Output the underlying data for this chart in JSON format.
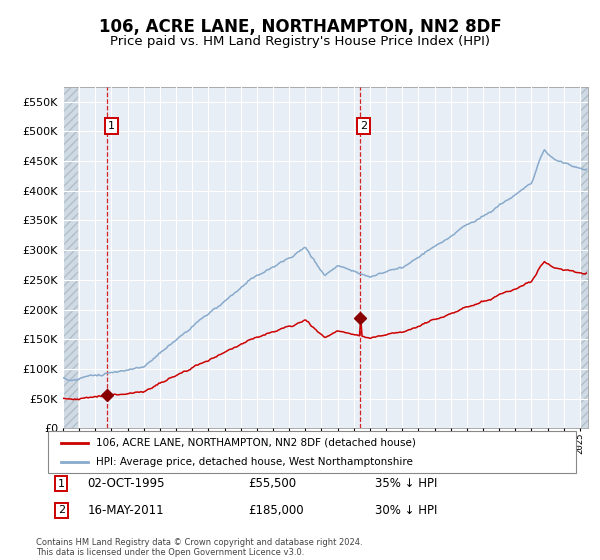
{
  "title": "106, ACRE LANE, NORTHAMPTON, NN2 8DF",
  "subtitle": "Price paid vs. HM Land Registry's House Price Index (HPI)",
  "title_fontsize": 12,
  "subtitle_fontsize": 9.5,
  "bg_color": "#e8eef5",
  "grid_color": "#ffffff",
  "red_line_color": "#cc0000",
  "blue_line_color": "#88aacc",
  "marker_color": "#880000",
  "vline_color": "#cc0000",
  "sale1_year": 1995.75,
  "sale1_value": 55500,
  "sale2_year": 2011.37,
  "sale2_value": 185000,
  "ylim_max": 575000,
  "ylim_min": 0,
  "xlim_min": 1993.0,
  "xlim_max": 2025.5,
  "legend_label_red": "106, ACRE LANE, NORTHAMPTON, NN2 8DF (detached house)",
  "legend_label_blue": "HPI: Average price, detached house, West Northamptonshire",
  "footer": "Contains HM Land Registry data © Crown copyright and database right 2024.\nThis data is licensed under the Open Government Licence v3.0."
}
